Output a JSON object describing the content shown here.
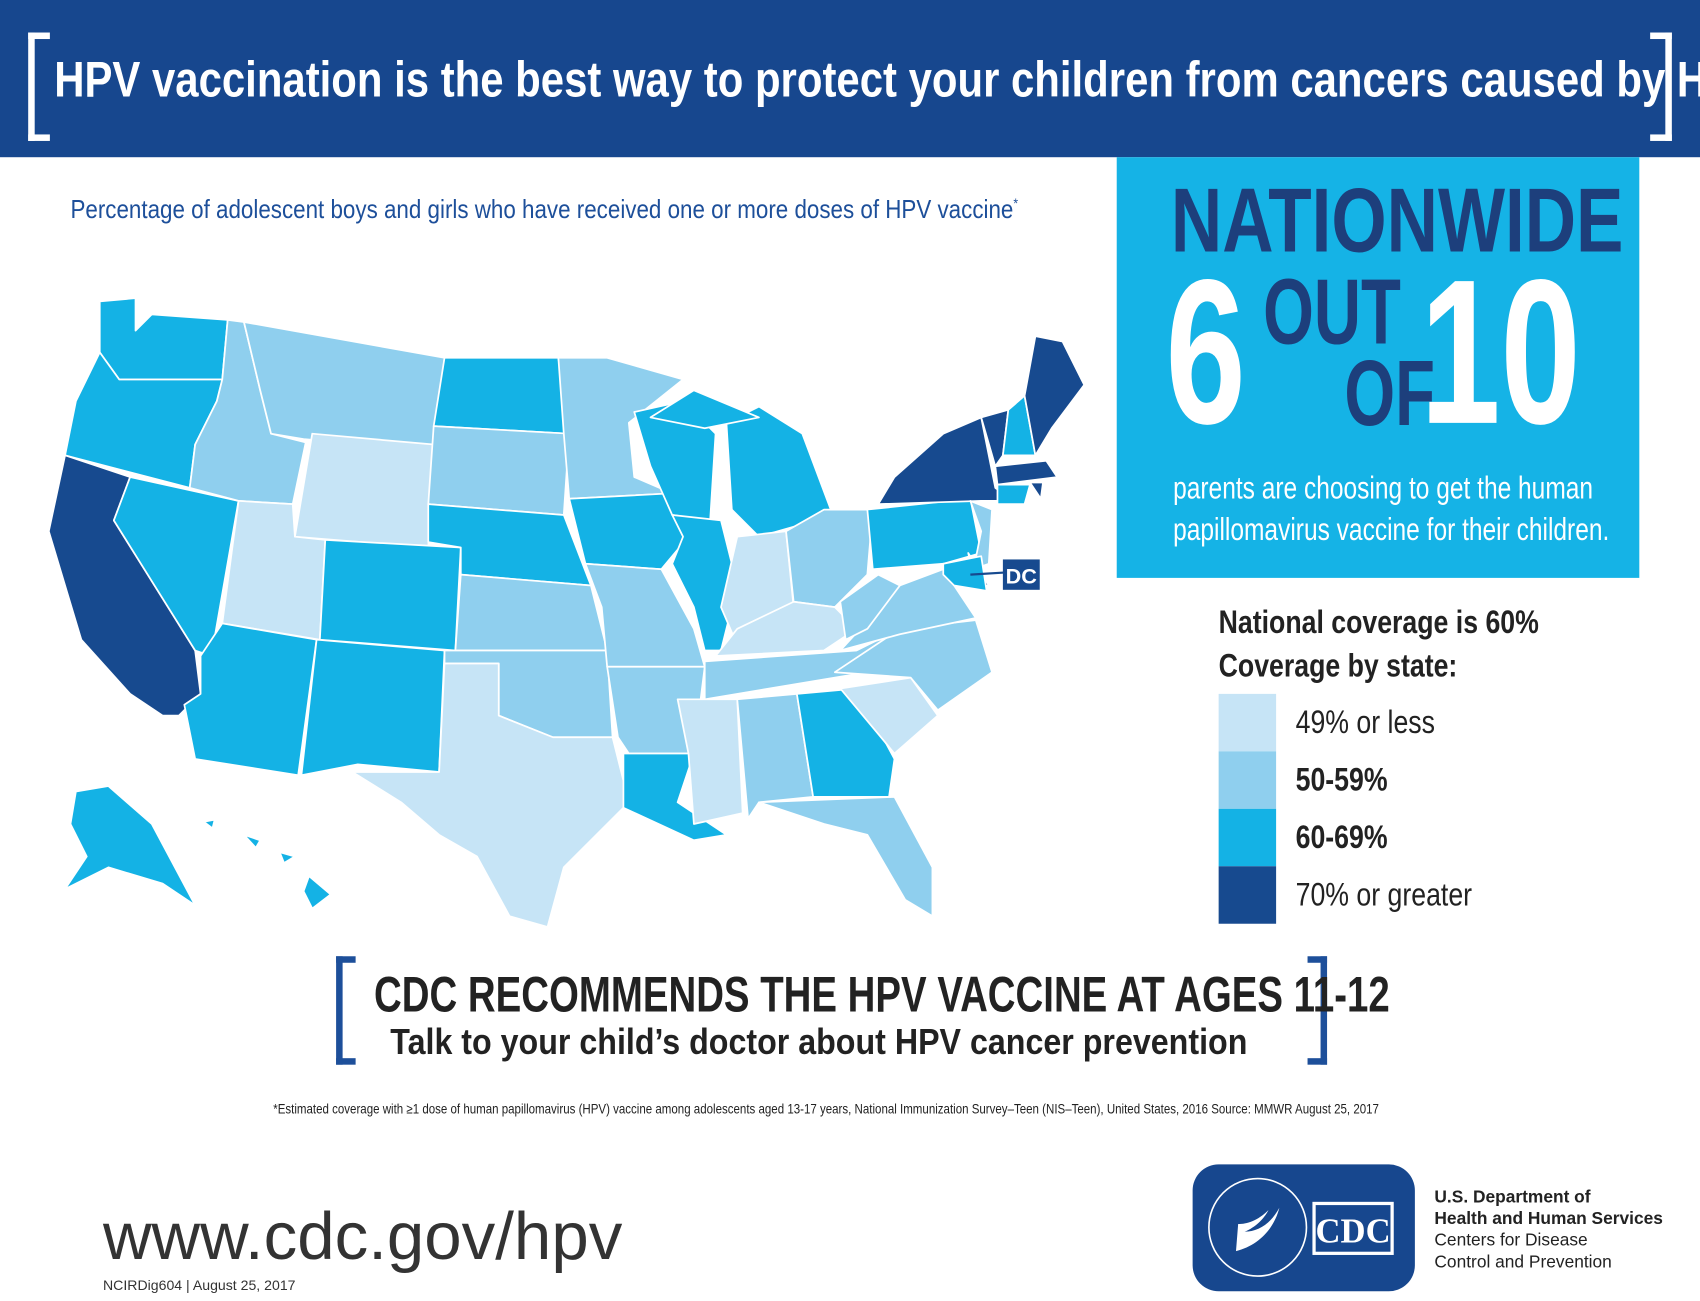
{
  "header": {
    "title": "HPV vaccination is the best way to protect your children from cancers caused by HPV"
  },
  "subtitle": "Percentage of adolescent boys and girls who have received one or more doses of HPV vaccine",
  "subtitle_mark": "*",
  "callout": {
    "nationwide": "NATIONWIDE",
    "six": "6",
    "out": "OUT",
    "of": "OF",
    "ten": "10",
    "text": "parents are choosing to get the human papillomavirus vaccine for their children."
  },
  "legend": {
    "national": "National coverage is 60%",
    "by_state": "Coverage by state:",
    "items": [
      {
        "label": "49% or less",
        "color": "#c6e4f6"
      },
      {
        "label": "50-59%",
        "color": "#8fcfee"
      },
      {
        "label": "60-69%",
        "color": "#14b2e5"
      },
      {
        "label": "70% or greater",
        "color": "#174a8f"
      }
    ]
  },
  "map": {
    "dc_label": "DC",
    "states": {
      "WA": 2,
      "OR": 2,
      "CA": 3,
      "NV": 2,
      "ID": 1,
      "MT": 1,
      "WY": 0,
      "UT": 0,
      "AZ": 2,
      "CO": 2,
      "NM": 2,
      "ND": 2,
      "SD": 1,
      "NE": 2,
      "KS": 1,
      "OK": 1,
      "TX": 0,
      "MN": 1,
      "IA": 2,
      "MO": 1,
      "AR": 1,
      "LA": 2,
      "WI": 2,
      "IL": 2,
      "MI": 2,
      "IN": 0,
      "OH": 1,
      "KY": 0,
      "TN": 1,
      "MS": 0,
      "AL": 1,
      "GA": 2,
      "FL": 1,
      "SC": 0,
      "NC": 1,
      "VA": 1,
      "WV": 1,
      "PA": 2,
      "NY": 3,
      "VT": 3,
      "NH": 2,
      "ME": 3,
      "MA": 3,
      "RI": 3,
      "CT": 2,
      "NJ": 1,
      "DE": 3,
      "MD": 2,
      "DC": 3,
      "AK": 2,
      "HI": 2
    }
  },
  "recommendation": {
    "headline": "CDC RECOMMENDS THE HPV VACCINE AT AGES 11-12",
    "sub": "Talk to your child’s doctor about HPV cancer prevention"
  },
  "footnote": "*Estimated coverage with ≥1 dose of human papillomavirus (HPV) vaccine among adolescents aged 13-17 years, National Immunization Survey–Teen (NIS–Teen), United States, 2016  Source: MMWR August 25, 2017",
  "url": "www.cdc.gov/hpv",
  "code": "NCIRDig604 | August 25, 2017",
  "logo": {
    "cdc": "CDC",
    "seal": "DEPARTMENT OF HEALTH & HUMAN SERVICES·USA"
  },
  "agency": {
    "line1": "U.S. Department of",
    "line2": "Health and Human Services",
    "line3": "Centers for Disease",
    "line4": "Control and Prevention"
  }
}
